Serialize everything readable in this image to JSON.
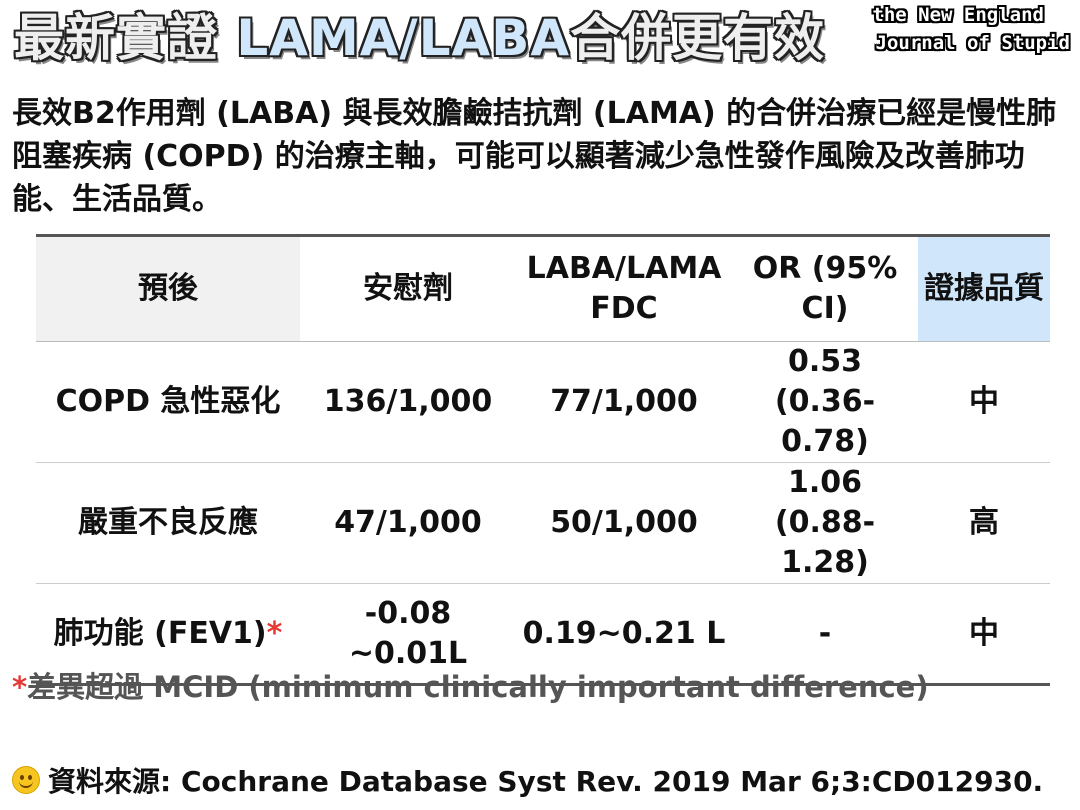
{
  "title": {
    "part1": "最新實證 ",
    "part2": "LAMA/LABA",
    "part3": "合併更有效"
  },
  "logo": {
    "line1": "the New England",
    "line2": "Journal of Stupid"
  },
  "intro": "長效B2作用劑 (LABA) 與長效膽鹼拮抗劑 (LAMA) 的合併治療已經是慢性肺阻塞疾病 (COPD) 的治療主軸，可能可以顯著減少急性發作風險及改善肺功能、生活品質。",
  "table": {
    "headers": [
      "預後",
      "安慰劑",
      "LABA/LAMA FDC",
      "OR (95% CI)",
      "證據品質"
    ],
    "rows": [
      {
        "outcome": "COPD 急性惡化",
        "marker": "",
        "placebo": "136/1,000",
        "fdc": "77/1,000",
        "or": "0.53 (0.36-0.78)",
        "quality": "中"
      },
      {
        "outcome": "嚴重不良反應",
        "marker": "",
        "placebo": "47/1,000",
        "fdc": "50/1,000",
        "or": "1.06 (0.88-1.28)",
        "quality": "高"
      },
      {
        "outcome": "肺功能 (FEV1)",
        "marker": "*",
        "placebo": "-0.08 ~0.01L",
        "fdc": "0.19~0.21 L",
        "or": "-",
        "quality": "中"
      }
    ]
  },
  "footnote": {
    "marker": "*",
    "text": "差異超過 MCID (minimum clinically important difference)"
  },
  "source": {
    "icon": "smiley-icon",
    "text": "資料來源: Cochrane Database Syst Rev. 2019 Mar 6;3:CD012930."
  },
  "colors": {
    "header_gray": "#f1f1f1",
    "header_blue": "#cfe6fb",
    "accent_red": "#e53935"
  }
}
